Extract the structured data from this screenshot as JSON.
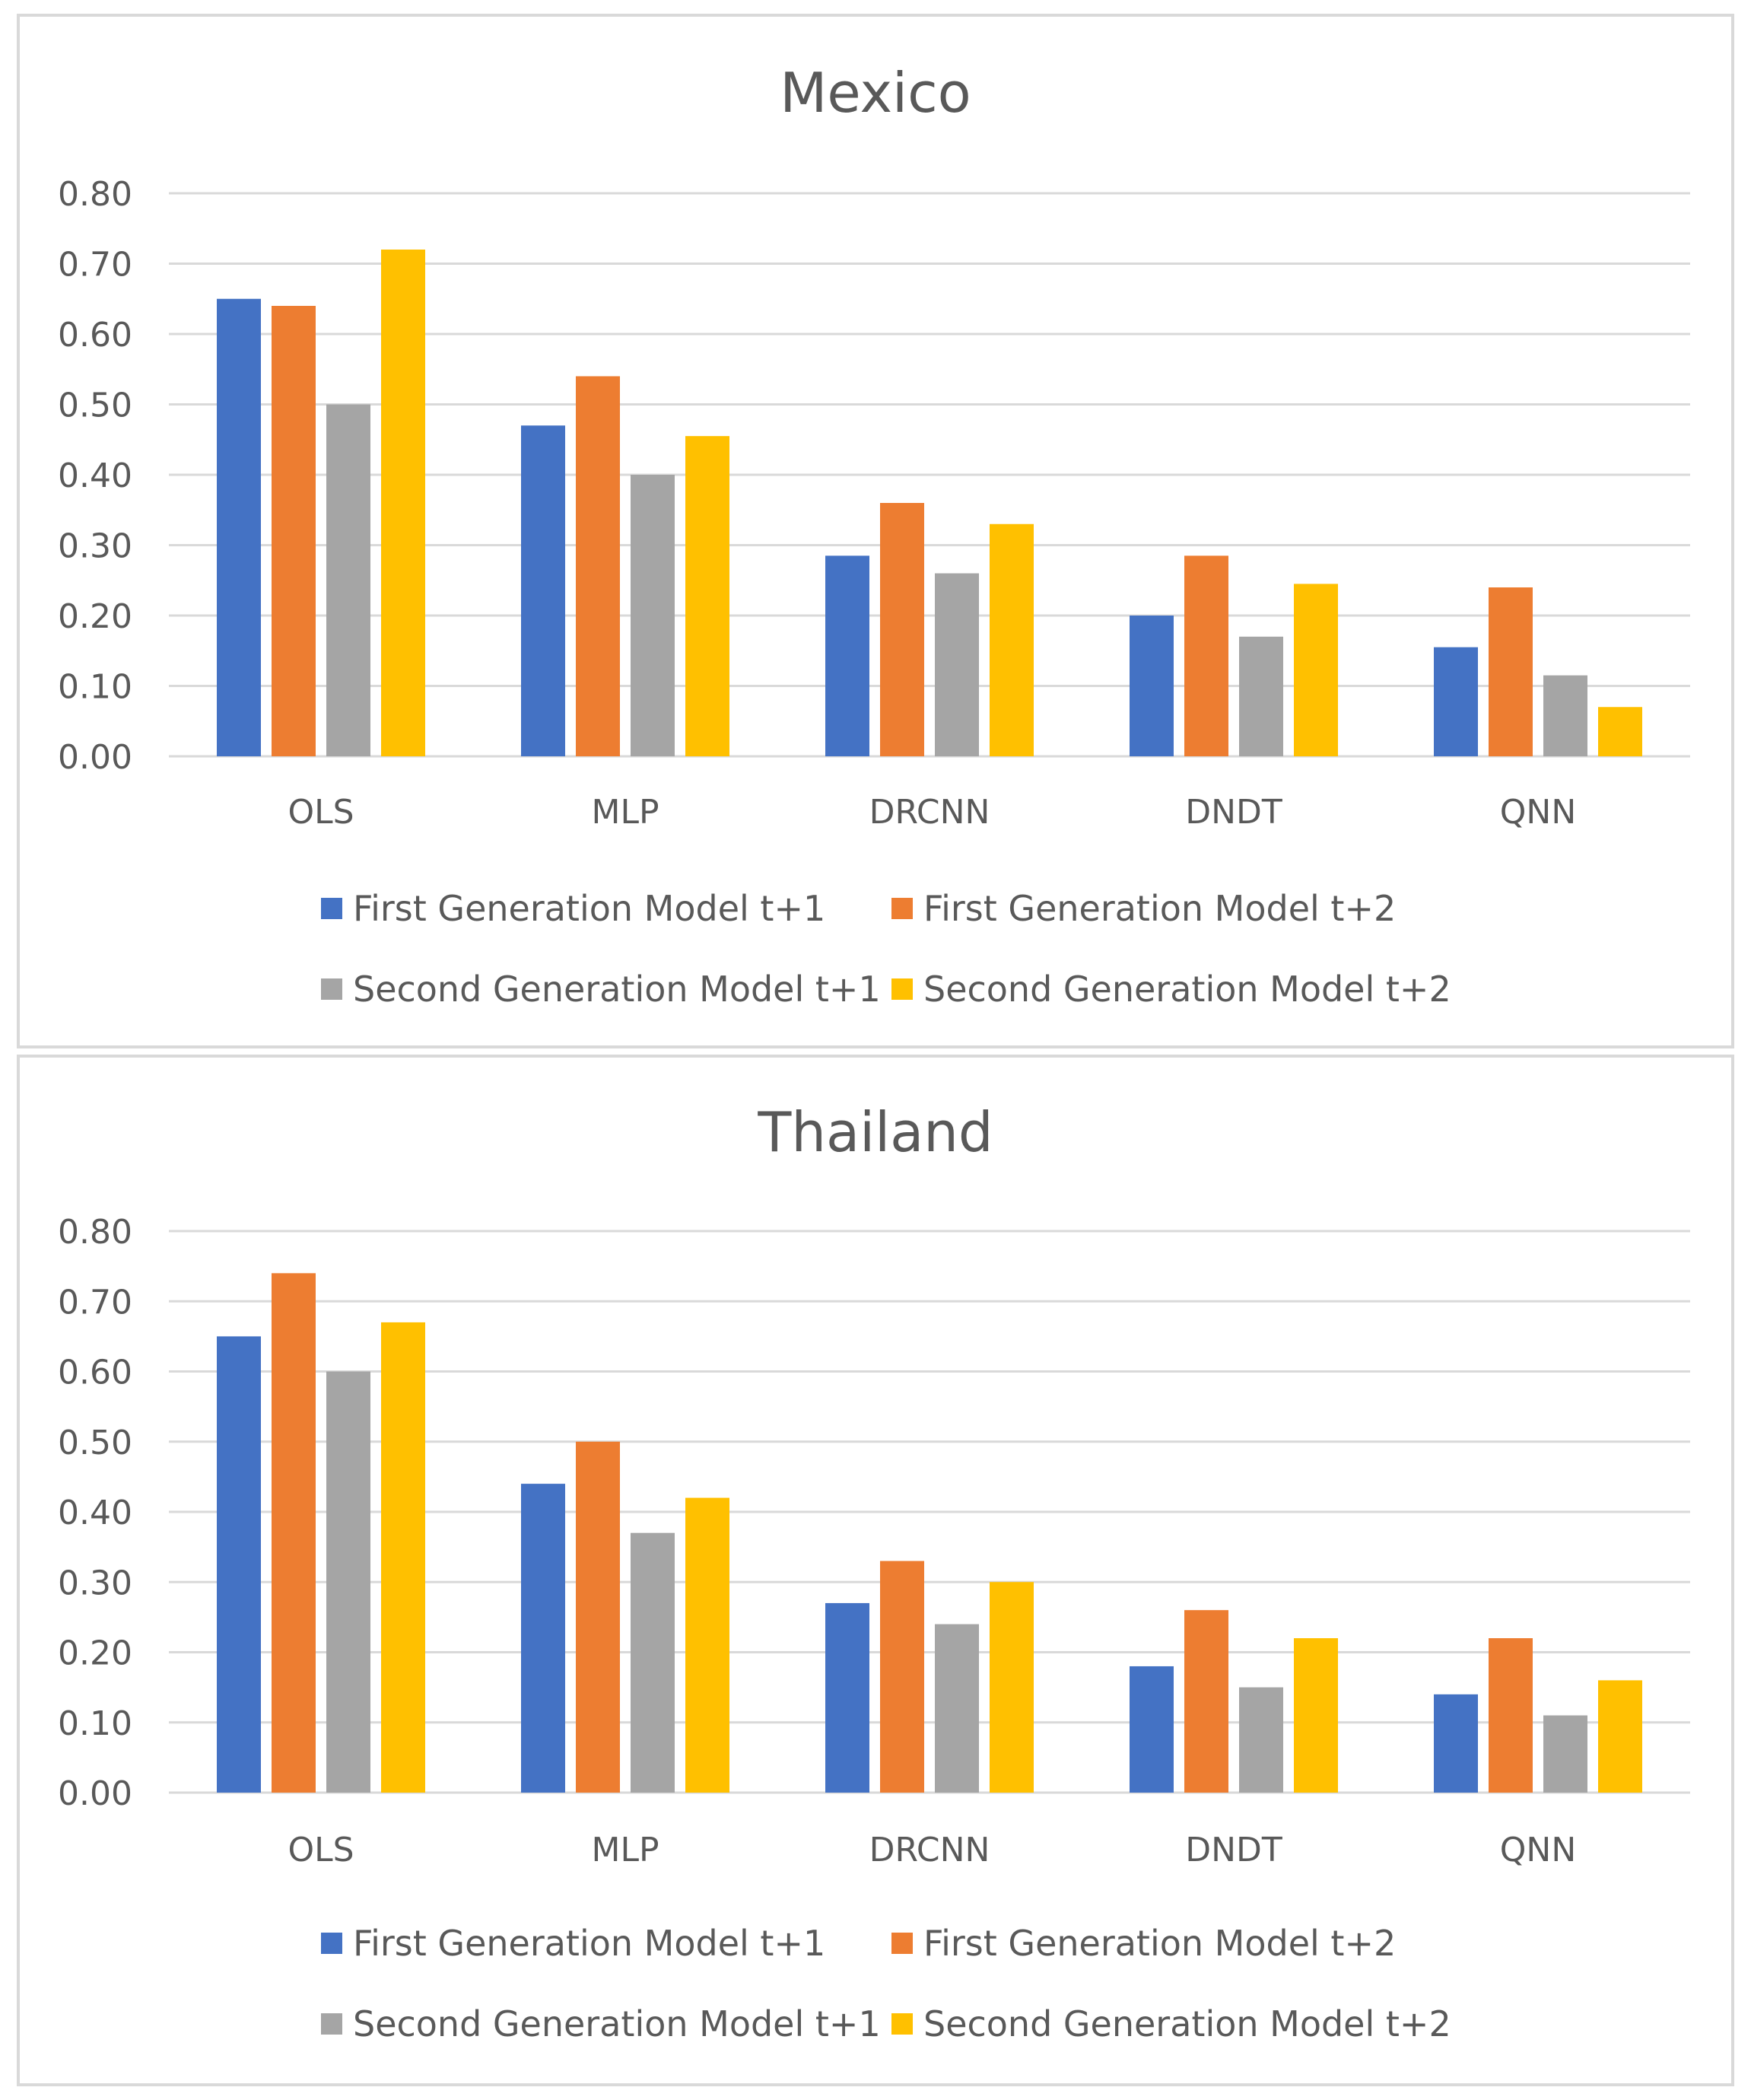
{
  "chart_data": [
    {
      "type": "bar",
      "title": "Mexico",
      "categories": [
        "OLS",
        "MLP",
        "DRCNN",
        "DNDT",
        "QNN"
      ],
      "series": [
        {
          "name": "First Generation Model t+1",
          "color": "#4472c4",
          "values": [
            0.65,
            0.47,
            0.285,
            0.2,
            0.155
          ]
        },
        {
          "name": "First Generation Model t+2",
          "color": "#ed7d31",
          "values": [
            0.64,
            0.54,
            0.36,
            0.285,
            0.24
          ]
        },
        {
          "name": "Second Generation Model t+1",
          "color": "#a5a5a5",
          "values": [
            0.5,
            0.4,
            0.26,
            0.17,
            0.115
          ]
        },
        {
          "name": "Second Generation Model t+2",
          "color": "#ffc000",
          "values": [
            0.72,
            0.455,
            0.33,
            0.245,
            0.07
          ]
        }
      ],
      "y_ticks": [
        "0.00",
        "0.10",
        "0.20",
        "0.30",
        "0.40",
        "0.50",
        "0.60",
        "0.70",
        "0.80"
      ],
      "ylim": [
        0,
        0.8
      ],
      "xlabel": "",
      "ylabel": "",
      "grid": true,
      "legend_position": "bottom"
    },
    {
      "type": "bar",
      "title": "Thailand",
      "categories": [
        "OLS",
        "MLP",
        "DRCNN",
        "DNDT",
        "QNN"
      ],
      "series": [
        {
          "name": "First Generation Model t+1",
          "color": "#4472c4",
          "values": [
            0.65,
            0.44,
            0.27,
            0.18,
            0.14
          ]
        },
        {
          "name": "First Generation Model t+2",
          "color": "#ed7d31",
          "values": [
            0.74,
            0.5,
            0.33,
            0.26,
            0.22
          ]
        },
        {
          "name": "Second Generation Model t+1",
          "color": "#a5a5a5",
          "values": [
            0.6,
            0.37,
            0.24,
            0.15,
            0.11
          ]
        },
        {
          "name": "Second Generation Model t+2",
          "color": "#ffc000",
          "values": [
            0.67,
            0.42,
            0.3,
            0.22,
            0.16
          ]
        }
      ],
      "y_ticks": [
        "0.00",
        "0.10",
        "0.20",
        "0.30",
        "0.40",
        "0.50",
        "0.60",
        "0.70",
        "0.80"
      ],
      "ylim": [
        0,
        0.8
      ],
      "xlabel": "",
      "ylabel": "",
      "grid": true,
      "legend_position": "bottom"
    }
  ]
}
